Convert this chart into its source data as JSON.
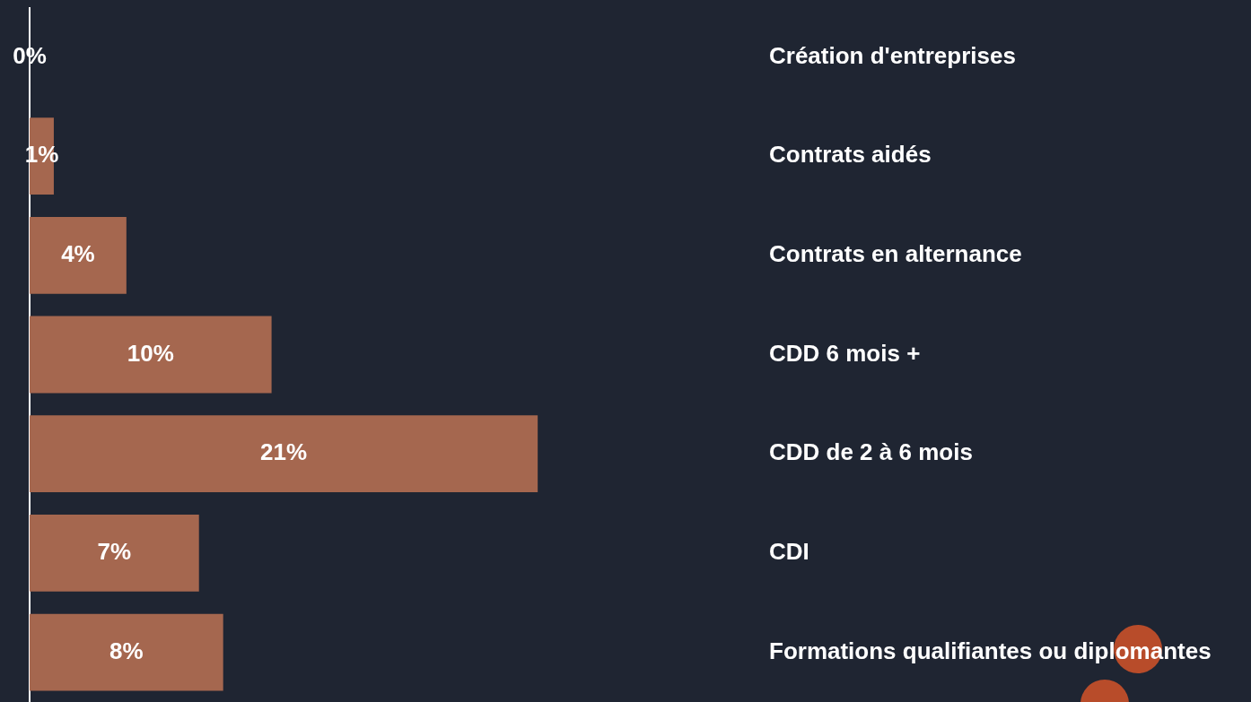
{
  "chart_data": {
    "type": "bar",
    "orientation": "horizontal",
    "categories": [
      "Création d'entreprises",
      "Contrats aidés",
      "Contrats en alternance",
      "CDD 6 mois +",
      "CDD de 2 à 6 mois",
      "CDI",
      "Formations qualifiantes ou diplomantes"
    ],
    "values": [
      0,
      1,
      4,
      10,
      21,
      7,
      8
    ],
    "value_labels": [
      "0%",
      "1%",
      "4%",
      "10%",
      "21%",
      "7%",
      "8%"
    ],
    "color": "#a5674f",
    "legend": false
  }
}
